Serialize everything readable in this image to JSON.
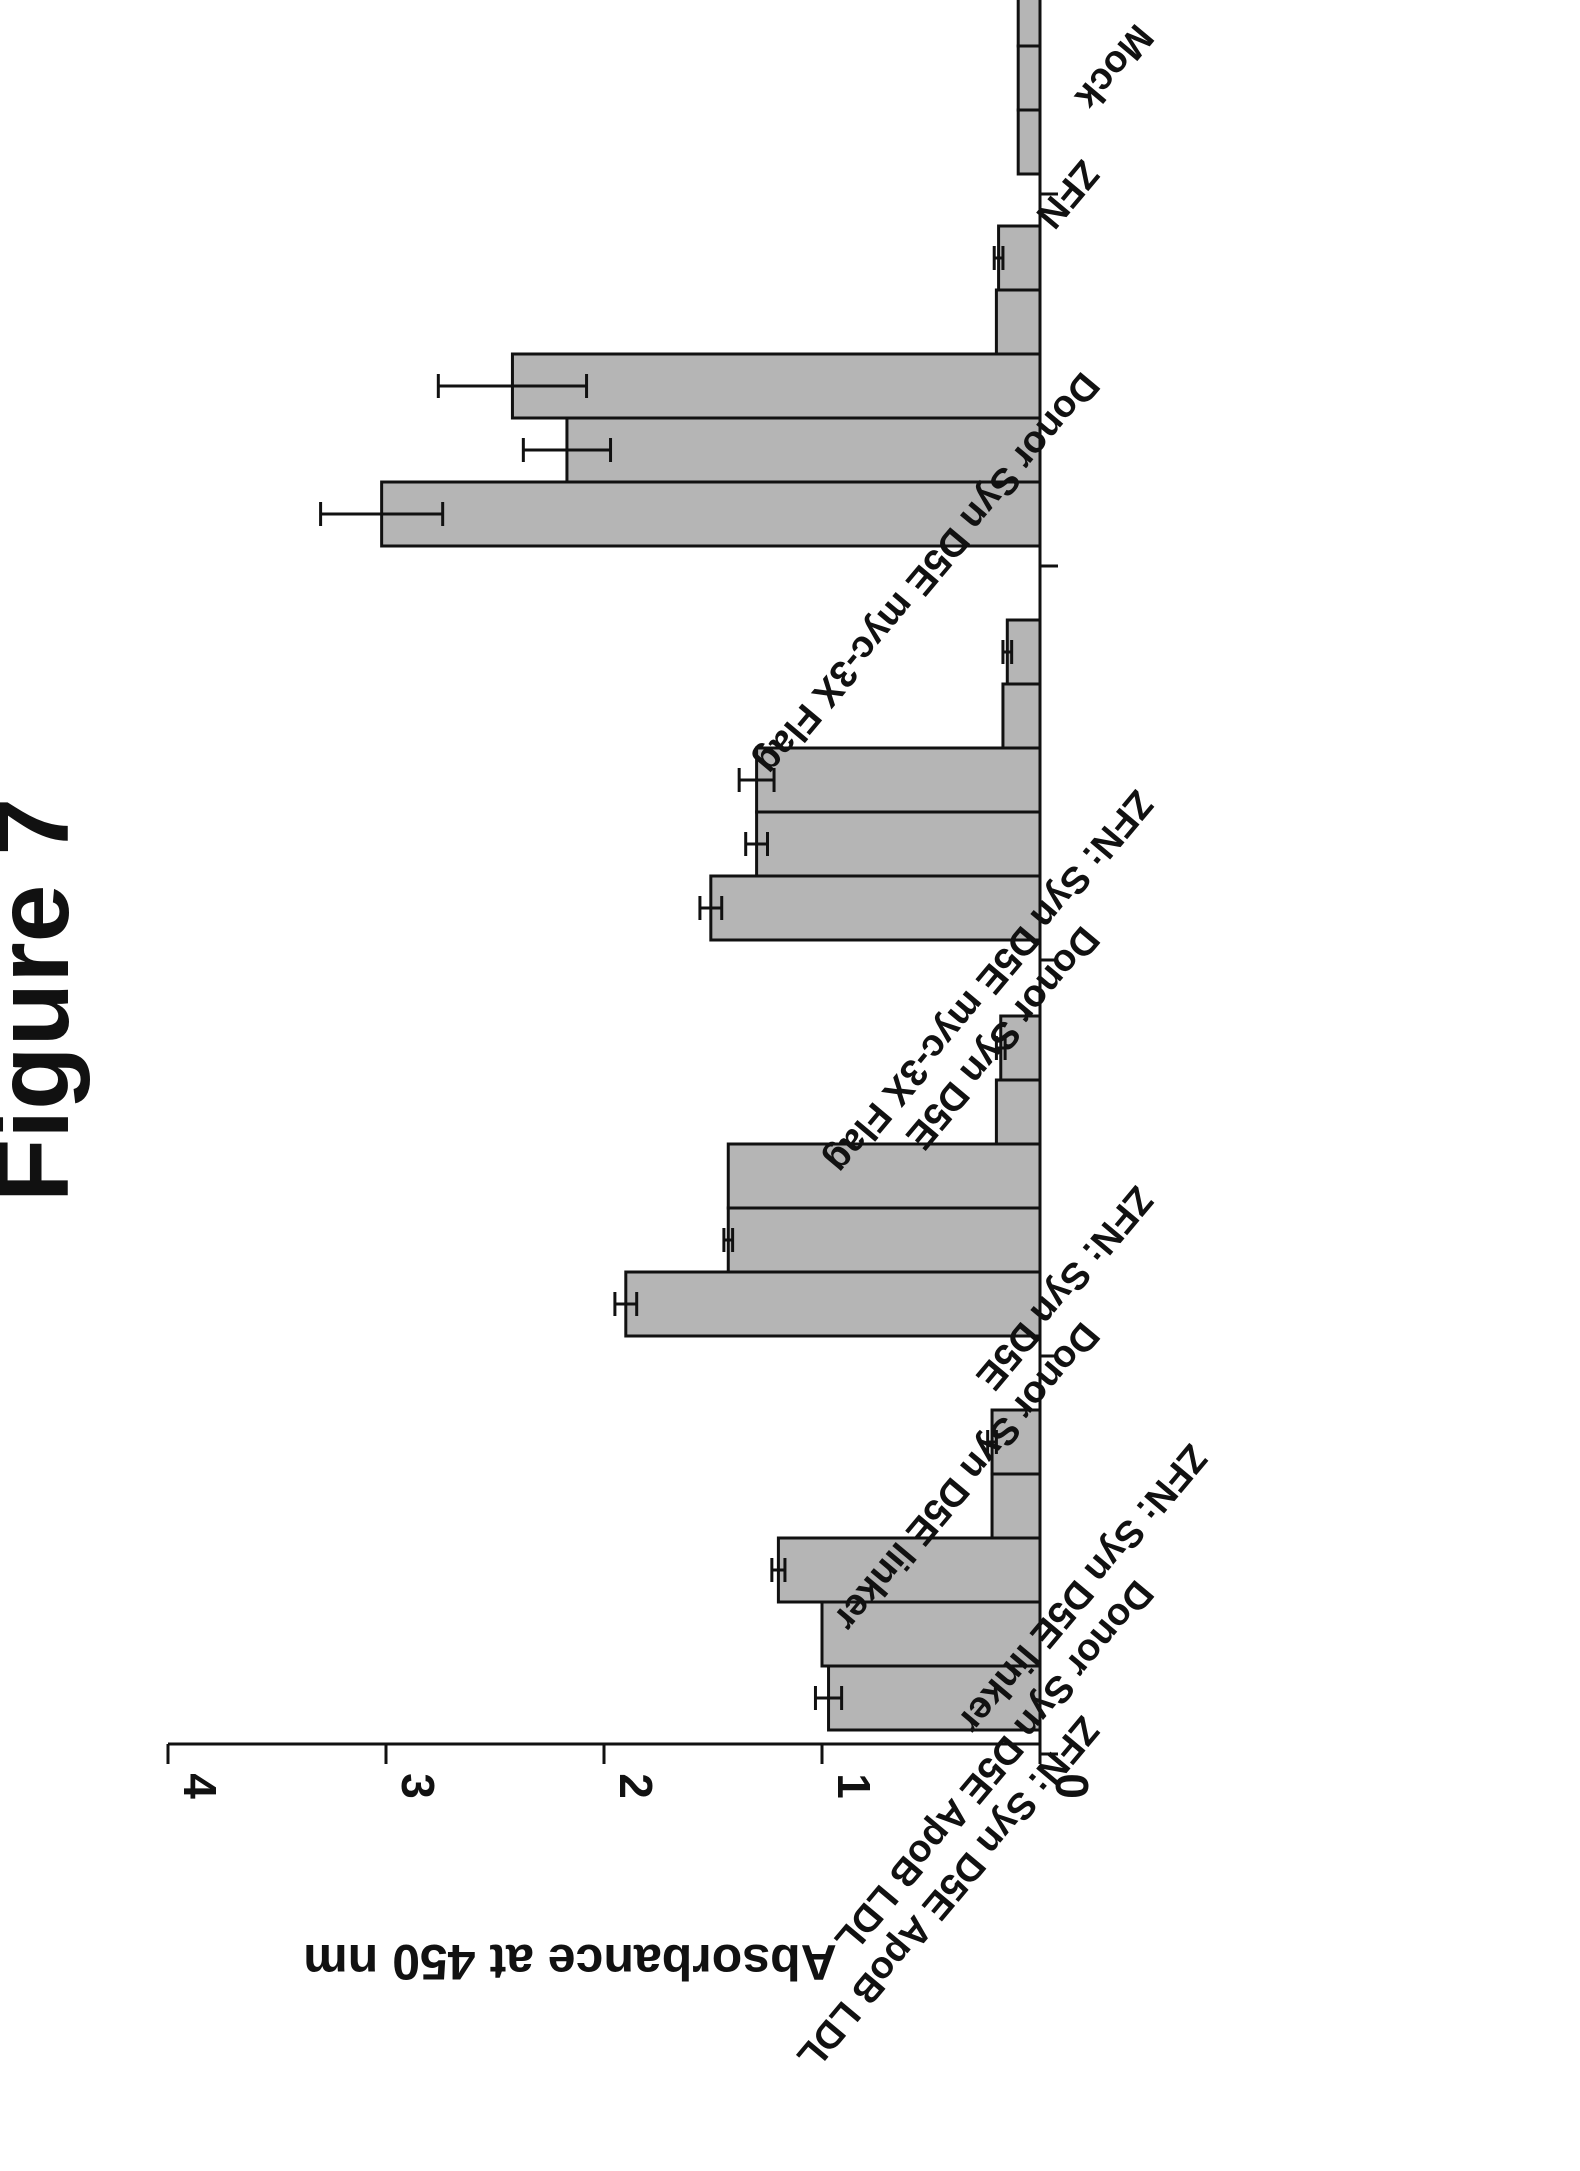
{
  "figure": {
    "title": "Figure 7"
  },
  "chart_data": {
    "type": "bar",
    "orientation": "rotated-90-clockwise (value axis horizontal, categories stacked top-to-bottom)",
    "title": "",
    "xlabel": "",
    "ylabel": "Absorbance at 450 nm",
    "ylim": [
      0,
      4
    ],
    "yticks": [
      0,
      1,
      2,
      3,
      4
    ],
    "grid": false,
    "legend": "none",
    "bar_color": "#b5b5b5",
    "groups": [
      {
        "labels": [
          "ZFN: Syn D5E ApoB LDL",
          "Donor Syn D5E ApoB LDL",
          "ZFN: Syn D5E linker"
        ],
        "bars": [
          {
            "value": 0.97,
            "err": 0.06
          },
          {
            "value": 1.0,
            "err": 0
          },
          {
            "value": 1.2,
            "err": 0.03
          },
          {
            "value": 0.22,
            "err": 0
          },
          {
            "value": 0.22,
            "err": 0.02
          }
        ]
      },
      {
        "labels": [
          "Donor Syn D5E linker",
          "ZFN: Syn D5E"
        ],
        "bars": [
          {
            "value": 1.9,
            "err": 0.05
          },
          {
            "value": 1.43,
            "err": 0.02
          },
          {
            "value": 1.43,
            "err": 0
          },
          {
            "value": 0.2,
            "err": 0
          },
          {
            "value": 0.18,
            "err": 0.02
          }
        ]
      },
      {
        "labels": [
          "Donor Syn D5E",
          "ZFN: Syn D5E myc-3X Flag"
        ],
        "bars": [
          {
            "value": 1.51,
            "err": 0.05
          },
          {
            "value": 1.3,
            "err": 0.05
          },
          {
            "value": 1.3,
            "err": 0.08
          },
          {
            "value": 0.17,
            "err": 0
          },
          {
            "value": 0.15,
            "err": 0.02
          }
        ]
      },
      {
        "labels": [
          "Donor Syn D5E myc-3X Flag"
        ],
        "bars": [
          {
            "value": 3.02,
            "err": 0.28
          },
          {
            "value": 2.17,
            "err": 0.2
          },
          {
            "value": 2.42,
            "err": 0.34
          },
          {
            "value": 0.2,
            "err": 0
          },
          {
            "value": 0.19,
            "err": 0.02
          }
        ]
      },
      {
        "labels": [
          "ZFN",
          "Mock"
        ],
        "bars": [
          {
            "value": 0.1,
            "err": 0
          },
          {
            "value": 0.1,
            "err": 0
          },
          {
            "value": 0.1,
            "err": 0
          }
        ]
      }
    ]
  }
}
